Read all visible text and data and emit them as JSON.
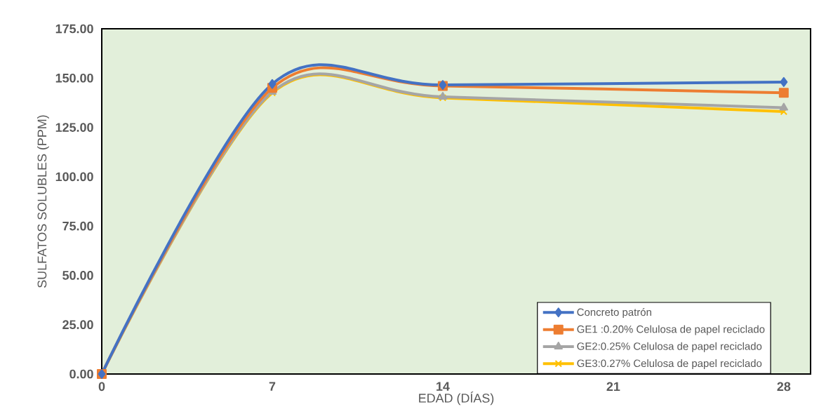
{
  "chart_data": {
    "type": "line",
    "xlabel": "EDAD (DÍAS)",
    "ylabel": "SULFATOS SOLUBLES (PPM)",
    "x": [
      0,
      7,
      14,
      28
    ],
    "xlim": [
      0,
      29.1
    ],
    "xticks": [
      0,
      7,
      14,
      21,
      28
    ],
    "ylim": [
      0,
      175
    ],
    "yticks": [
      {
        "value": 0,
        "label": "0.00"
      },
      {
        "value": 25,
        "label": "25.00"
      },
      {
        "value": 50,
        "label": "50.00"
      },
      {
        "value": 75,
        "label": "75.00"
      },
      {
        "value": 100,
        "label": "100.00"
      },
      {
        "value": 125,
        "label": "125.00"
      },
      {
        "value": 150,
        "label": "150.00"
      },
      {
        "value": 175,
        "label": "175.00"
      }
    ],
    "legend": "bottom right",
    "grid": false,
    "series": [
      {
        "name": "Concreto patrón",
        "color": "#4472c4",
        "marker": "diamond",
        "values": [
          0,
          147,
          146.5,
          148
        ]
      },
      {
        "name": "GE1 :0.20% Celulosa de papel reciclado",
        "color": "#ed7d31",
        "marker": "square",
        "values": [
          0,
          145,
          146,
          142.5
        ]
      },
      {
        "name": "GE2:0.25% Celulosa de papel reciclado",
        "color": "#a5a5a5",
        "marker": "triangle",
        "values": [
          0,
          143,
          140.5,
          135
        ]
      },
      {
        "name": "GE3:0.27% Celulosa de papel reciclado",
        "color": "#ffc000",
        "marker": "cross",
        "values": [
          0,
          142.5,
          140,
          133
        ]
      }
    ]
  }
}
